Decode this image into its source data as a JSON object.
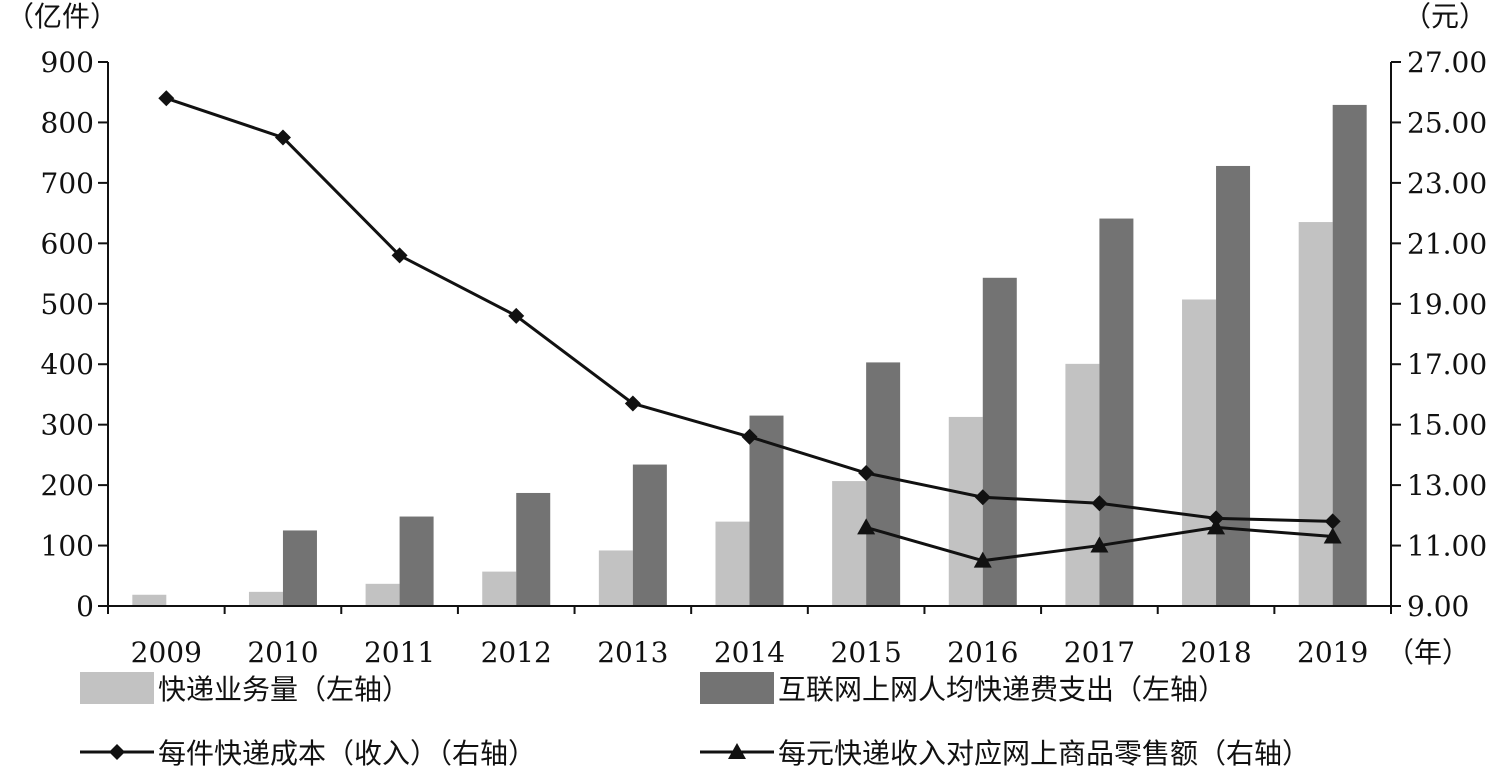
{
  "chart_data": {
    "type": "bar",
    "y_unit_left": "（亿件）",
    "y_unit_right": "（元）",
    "x_unit": "（年）",
    "categories": [
      "2009",
      "2010",
      "2011",
      "2012",
      "2013",
      "2014",
      "2015",
      "2016",
      "2017",
      "2018",
      "2019"
    ],
    "ylim_left": [
      0,
      900
    ],
    "yticks_left": [
      "0",
      "100",
      "200",
      "300",
      "400",
      "500",
      "600",
      "700",
      "800",
      "900"
    ],
    "ylim_right": [
      9,
      27
    ],
    "yticks_right": [
      "9.00",
      "11.00",
      "13.00",
      "15.00",
      "17.00",
      "19.00",
      "21.00",
      "23.00",
      "25.00",
      "27.00"
    ],
    "grid": false,
    "legend_position": "bottom",
    "bar_series": [
      {
        "name": "快递业务量（左轴）",
        "axis": "left",
        "color": "#c2c2c2",
        "values": [
          18.6,
          23.4,
          36.7,
          56.9,
          91.9,
          139.6,
          206.7,
          312.8,
          400.6,
          507.1,
          635.2
        ]
      },
      {
        "name": "互联网上网人均快递费支出（左轴）",
        "axis": "left",
        "color": "#737373",
        "values": [
          null,
          125,
          148,
          187,
          234,
          315,
          403,
          543,
          641,
          728,
          829
        ]
      }
    ],
    "line_series": [
      {
        "name": "每件快递成本（收入）（右轴）",
        "axis": "right",
        "marker": "diamond",
        "color": "#111111",
        "values": [
          25.8,
          24.5,
          20.6,
          18.6,
          15.7,
          14.6,
          13.4,
          12.6,
          12.4,
          11.9,
          11.8
        ]
      },
      {
        "name": "每元快递收入对应网上商品零售额（右轴）",
        "axis": "right",
        "marker": "triangle",
        "color": "#111111",
        "values": [
          null,
          null,
          null,
          null,
          null,
          null,
          11.6,
          10.5,
          11.0,
          11.6,
          11.3
        ]
      }
    ]
  }
}
